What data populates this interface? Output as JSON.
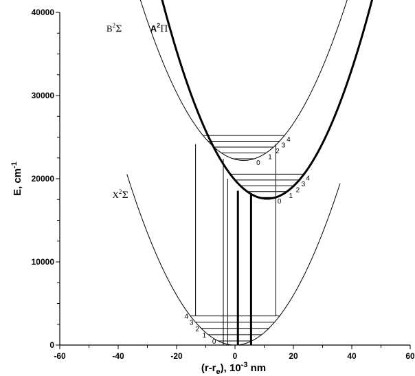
{
  "chart_data": {
    "type": "line",
    "xlabel_main": "(r-r",
    "xlabel_sub": "e",
    "xlabel_rest": "), 10",
    "xlabel_exp": "-3",
    "xlabel_unit": " nm",
    "ylabel_main": "E, cm",
    "ylabel_exp": "-1",
    "xlim": [
      -60,
      60
    ],
    "ylim": [
      0,
      40000
    ],
    "x_ticks": [
      -60,
      -40,
      -20,
      0,
      20,
      40,
      60
    ],
    "y_ticks": [
      0,
      10000,
      20000,
      30000,
      40000
    ],
    "grid": false,
    "curves": [
      {
        "label_main": "X",
        "label_sup": "2",
        "label_greek": "Σ",
        "bold": false,
        "x0": 0,
        "y0": 0,
        "k": 15.0,
        "xrange": [
          -37,
          36
        ],
        "label_at": [
          -42,
          17700
        ]
      },
      {
        "label_main": "B",
        "label_sup": "2",
        "label_greek": "Σ",
        "bold": false,
        "x0": 3,
        "y0": 22200,
        "k": 15.4,
        "xrange": [
          -36,
          41
        ],
        "label_at": [
          -44,
          37700
        ]
      },
      {
        "label_main": "A",
        "label_sup": "2",
        "label_greek": "Π",
        "bold": true,
        "x0": 11,
        "y0": 17600,
        "k": 18.5,
        "xrange": [
          -33.5,
          55
        ],
        "label_at": [
          -29,
          37700
        ]
      }
    ],
    "vibrational_levels": [
      {
        "state": "X",
        "labels": [
          "0",
          "1",
          "2",
          "3",
          "4"
        ],
        "energies": [
          500,
          1250,
          2000,
          2750,
          3500
        ],
        "label_side": "left"
      },
      {
        "state": "B",
        "labels": [
          "0",
          "1",
          "2",
          "3",
          "4"
        ],
        "energies": [
          22400,
          23100,
          23800,
          24500,
          25200
        ],
        "label_side": "right"
      },
      {
        "state": "A",
        "labels": [
          "0",
          "1",
          "2",
          "3",
          "4"
        ],
        "energies": [
          17750,
          18450,
          19150,
          19850,
          20550
        ],
        "label_side": "right"
      }
    ],
    "transitions": [
      {
        "x": -13.5,
        "y_from": 3500,
        "y_to": 24150,
        "bold": false
      },
      {
        "x": -4,
        "y_from": 0,
        "y_to": 22400,
        "bold": false
      },
      {
        "x": 14,
        "y_from": 3500,
        "y_to": 24150,
        "bold": false
      },
      {
        "x": -2.5,
        "y_from": 0,
        "y_to": 20000,
        "bold": false
      },
      {
        "x": 1,
        "y_from": 0,
        "y_to": 18550,
        "bold": true
      },
      {
        "x": 5.5,
        "y_from": 0,
        "y_to": 18050,
        "bold": true
      }
    ]
  }
}
